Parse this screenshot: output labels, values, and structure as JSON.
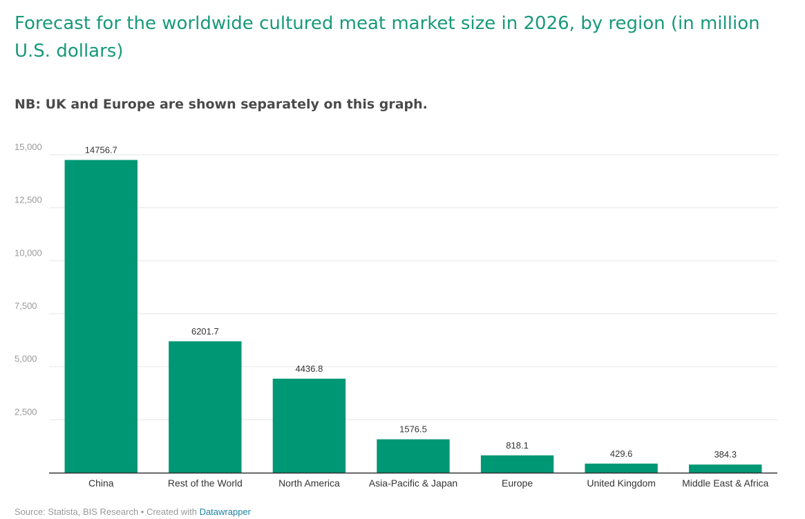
{
  "header": {
    "title": "Forecast for the worldwide cultured meat market size in 2026, by region (in million U.S. dollars)",
    "subtitle": "NB: UK and Europe are shown separately on this graph."
  },
  "footer": {
    "source": "Source: Statista, BIS Research • Created with ",
    "link_label": "Datawrapper"
  },
  "colors": {
    "bar": "#009775",
    "title": "#17997a",
    "grid": "#e6e6e6",
    "axis": "#333333"
  },
  "chart_data": {
    "type": "bar",
    "title": "Forecast for the worldwide cultured meat market size in 2026, by region (in million U.S. dollars)",
    "subtitle": "NB: UK and Europe are shown separately on this graph.",
    "categories": [
      "China",
      "Rest of the World",
      "North America",
      "Asia-Pacific & Japan",
      "Europe",
      "United Kingdom",
      "Middle East & Africa"
    ],
    "values": [
      14756.7,
      6201.7,
      4436.8,
      1576.5,
      818.1,
      429.6,
      384.3
    ],
    "value_labels": [
      "14756.7",
      "6201.7",
      "4436.8",
      "1576.5",
      "818.1",
      "429.6",
      "384.3"
    ],
    "yticks": [
      2500,
      5000,
      7500,
      10000,
      12500,
      15000
    ],
    "ytick_labels": [
      "2,500",
      "5,000",
      "7,500",
      "10,000",
      "12,500",
      "15,000"
    ],
    "ylim": [
      0,
      15000
    ],
    "grid": true,
    "legend": "none"
  }
}
